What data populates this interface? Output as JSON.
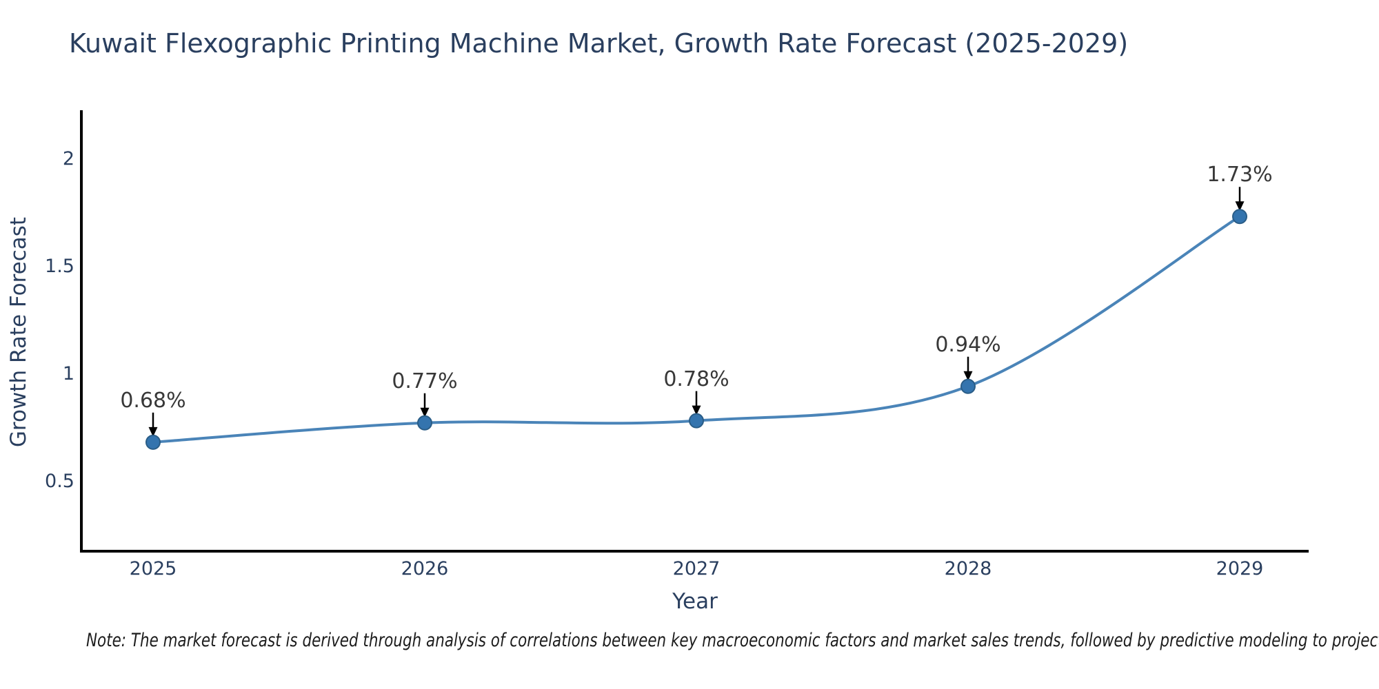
{
  "header": {
    "title": "Kuwait Flexographic Printing Machine Market, Growth Rate Forecast (2025-2029)"
  },
  "chart_data": {
    "type": "line",
    "title": "Kuwait Flexographic Printing Machine Market, Growth Rate Forecast (2025-2029)",
    "xlabel": "Year",
    "ylabel": "Growth Rate Forecast",
    "categories": [
      "2025",
      "2026",
      "2027",
      "2028",
      "2029"
    ],
    "x": [
      2025,
      2026,
      2027,
      2028,
      2029
    ],
    "values": [
      0.68,
      0.77,
      0.78,
      0.94,
      1.73
    ],
    "point_labels": [
      "0.68%",
      "0.77%",
      "0.78%",
      "0.94%",
      "1.73%"
    ],
    "series_name": "Growth Rate Forecast",
    "y_ticks": [
      0.5,
      1,
      1.5,
      2
    ],
    "y_tick_labels": [
      "0.5",
      "1",
      "1.5",
      "2"
    ],
    "ylim": [
      0.18,
      2.23
    ],
    "grid": false,
    "legend_position": "none",
    "line_shape": "spline",
    "colors": {
      "line": "#4a84b8",
      "marker_fill": "#3474ae",
      "marker_edge": "#2a5d87",
      "axis_line": "#000000",
      "text": "#2a3f5f",
      "annotation_text": "#383838",
      "arrow": "#000000",
      "background": "#ffffff"
    }
  },
  "footer": {
    "note": "Note: The market forecast is derived through analysis of correlations between key macroeconomic factors and market sales trends, followed by predictive modeling to project future sales"
  }
}
